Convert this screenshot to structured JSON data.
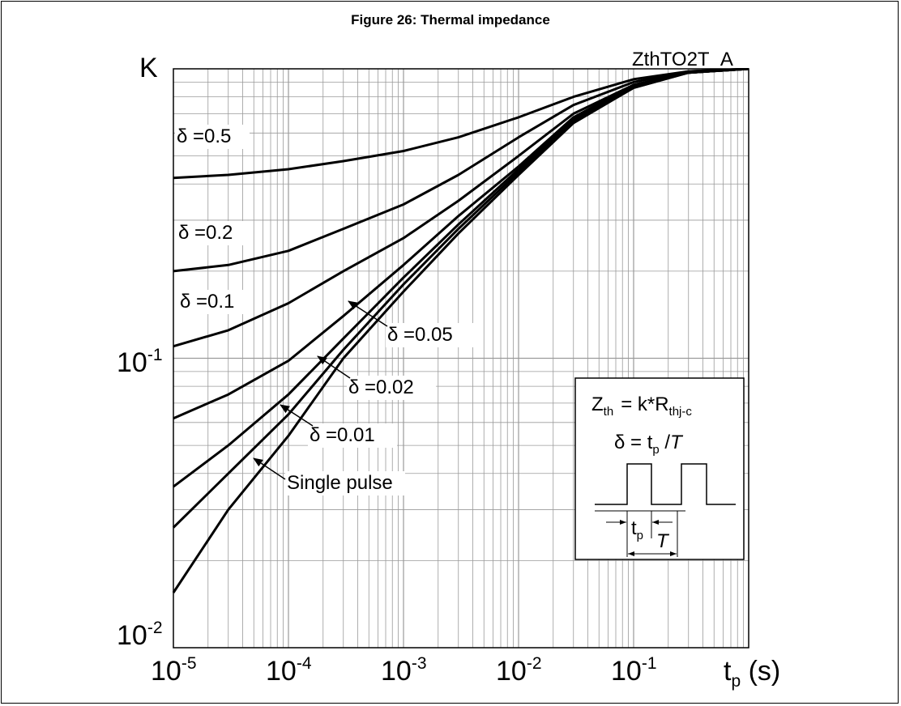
{
  "figure": {
    "caption": "Figure 26: Thermal impedance",
    "code": "ZthTO2T_A"
  },
  "chart_data": {
    "type": "line",
    "title": "Figure 26: Thermal impedance",
    "ylabel": "K",
    "xlabel": {
      "main": "t",
      "sub": "p",
      "unit": "(s)"
    },
    "x_scale": "log",
    "y_scale": "log",
    "xlim": [
      1e-05,
      1
    ],
    "ylim": [
      0.01,
      1
    ],
    "grid": true,
    "x_ticks": [
      {
        "base": "10",
        "exp": "-5"
      },
      {
        "base": "10",
        "exp": "-4"
      },
      {
        "base": "10",
        "exp": "-3"
      },
      {
        "base": "10",
        "exp": "-2"
      },
      {
        "base": "10",
        "exp": "-1"
      }
    ],
    "y_ticks": [
      {
        "base": "10",
        "exp": "-2"
      },
      {
        "base": "10",
        "exp": "-1"
      }
    ],
    "series": [
      {
        "name": "δ =0.5",
        "x": [
          1e-05,
          3e-05,
          0.0001,
          0.0003,
          0.001,
          0.003,
          0.01,
          0.03,
          0.1,
          0.3,
          1
        ],
        "y": [
          0.42,
          0.43,
          0.45,
          0.48,
          0.52,
          0.58,
          0.68,
          0.8,
          0.92,
          0.98,
          1.0
        ]
      },
      {
        "name": "δ =0.2",
        "x": [
          1e-05,
          3e-05,
          0.0001,
          0.0003,
          0.001,
          0.003,
          0.01,
          0.03,
          0.1,
          0.3,
          1
        ],
        "y": [
          0.2,
          0.21,
          0.235,
          0.28,
          0.34,
          0.43,
          0.58,
          0.75,
          0.9,
          0.98,
          1.0
        ]
      },
      {
        "name": "δ =0.1",
        "x": [
          1e-05,
          3e-05,
          0.0001,
          0.0003,
          0.001,
          0.003,
          0.01,
          0.03,
          0.1,
          0.3,
          1
        ],
        "y": [
          0.11,
          0.125,
          0.155,
          0.2,
          0.26,
          0.35,
          0.5,
          0.7,
          0.88,
          0.97,
          1.0
        ]
      },
      {
        "name": "δ =0.05",
        "x": [
          1e-05,
          3e-05,
          0.0001,
          0.0003,
          0.001,
          0.003,
          0.01,
          0.03,
          0.1,
          0.3,
          1
        ],
        "y": [
          0.062,
          0.075,
          0.098,
          0.14,
          0.21,
          0.31,
          0.46,
          0.68,
          0.88,
          0.97,
          1.0
        ]
      },
      {
        "name": "δ =0.02",
        "x": [
          1e-05,
          3e-05,
          0.0001,
          0.0003,
          0.001,
          0.003,
          0.01,
          0.03,
          0.1,
          0.3,
          1
        ],
        "y": [
          0.036,
          0.05,
          0.075,
          0.117,
          0.19,
          0.29,
          0.45,
          0.67,
          0.87,
          0.97,
          1.0
        ]
      },
      {
        "name": "δ =0.01",
        "x": [
          1e-05,
          3e-05,
          0.0001,
          0.0003,
          0.001,
          0.003,
          0.01,
          0.03,
          0.1,
          0.3,
          1
        ],
        "y": [
          0.026,
          0.04,
          0.064,
          0.107,
          0.18,
          0.28,
          0.44,
          0.66,
          0.86,
          0.97,
          1.0
        ]
      },
      {
        "name": "Single pulse",
        "x": [
          1e-05,
          3e-05,
          0.0001,
          0.0003,
          0.001,
          0.003,
          0.01,
          0.03,
          0.1,
          0.3,
          1
        ],
        "y": [
          0.0155,
          0.03,
          0.054,
          0.1,
          0.17,
          0.27,
          0.43,
          0.65,
          0.86,
          0.97,
          1.0
        ]
      }
    ],
    "annotations": [
      {
        "text": "δ =0.5"
      },
      {
        "text": "δ =0.2"
      },
      {
        "text": "δ =0.1"
      },
      {
        "text": "δ =0.05"
      },
      {
        "text": "δ =0.02"
      },
      {
        "text": "δ =0.01"
      },
      {
        "text": "Single pulse"
      }
    ]
  },
  "inset": {
    "formula_1": {
      "z": "Z",
      "z_sub": "th",
      "mid": "= k*R",
      "r_sub": "thj-c"
    },
    "formula_2": {
      "lead": "δ = t",
      "sub": "p",
      "tail": " /",
      "period": "T"
    },
    "tp_label": {
      "main": "t",
      "sub": "p"
    },
    "period_label": "T"
  }
}
